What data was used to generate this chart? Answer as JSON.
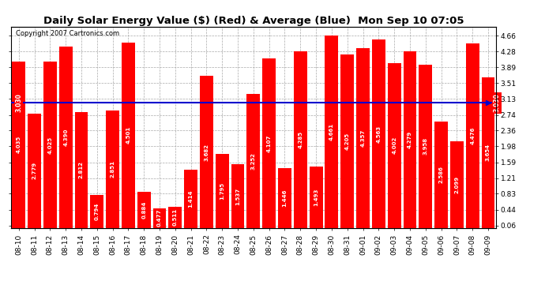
{
  "title": "Daily Solar Energy Value ($) (Red) & Average (Blue)  Mon Sep 10 07:05",
  "copyright": "Copyright 2007 Cartronics.com",
  "average": 3.03,
  "categories": [
    "08-10",
    "08-11",
    "08-12",
    "08-13",
    "08-14",
    "08-15",
    "08-16",
    "08-17",
    "08-18",
    "08-19",
    "08-20",
    "08-21",
    "08-22",
    "08-23",
    "08-24",
    "08-25",
    "08-26",
    "08-27",
    "08-28",
    "08-29",
    "08-30",
    "08-31",
    "09-01",
    "09-02",
    "09-03",
    "09-04",
    "09-05",
    "09-06",
    "09-07",
    "09-08",
    "09-09"
  ],
  "values": [
    4.035,
    2.779,
    4.025,
    4.39,
    2.812,
    0.794,
    2.851,
    4.501,
    0.884,
    0.477,
    0.511,
    1.414,
    3.682,
    1.795,
    1.537,
    3.252,
    4.107,
    1.446,
    4.285,
    1.493,
    4.661,
    4.205,
    4.357,
    4.563,
    4.002,
    4.279,
    3.958,
    2.586,
    2.099,
    4.476,
    3.654
  ],
  "bar_color": "#ff0000",
  "avg_line_color": "#0000cd",
  "bg_color": "#ffffff",
  "plot_bg_color": "#ffffff",
  "grid_color": "#aaaaaa",
  "title_fontsize": 9.5,
  "copyright_fontsize": 6,
  "tick_fontsize": 6.5,
  "val_fontsize": 5.0,
  "yticks": [
    0.06,
    0.44,
    0.83,
    1.21,
    1.59,
    1.98,
    2.36,
    2.74,
    3.13,
    3.51,
    3.89,
    4.28,
    4.66
  ],
  "ylim_max": 4.88,
  "avg_label": "3.030",
  "avg_label_color": "#ffffff",
  "avg_label_bg": "#ff0000"
}
